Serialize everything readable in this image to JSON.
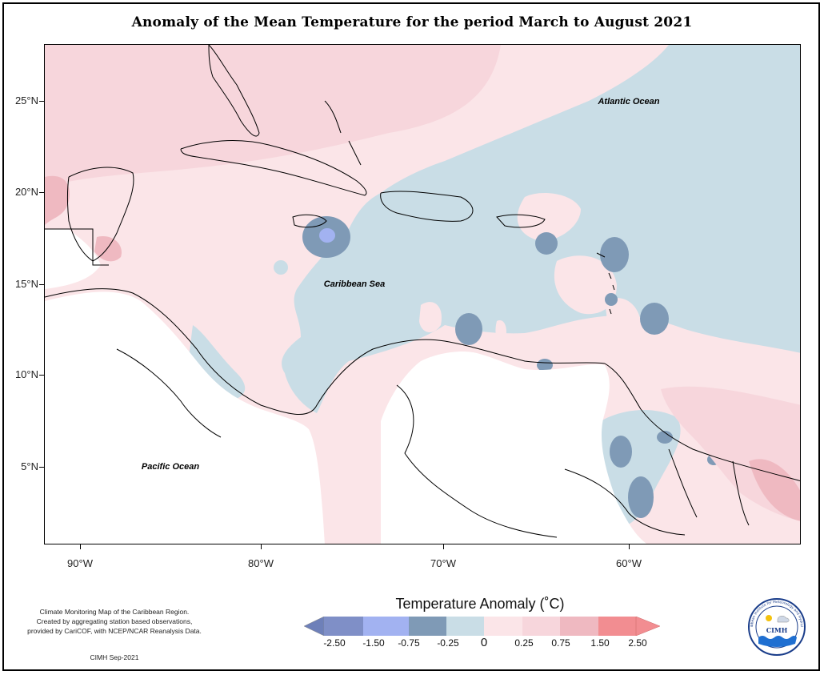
{
  "title": "Anomaly of the Mean Temperature for the period March to August 2021",
  "map": {
    "lon_range": [
      -92,
      -51
    ],
    "lat_range": [
      1,
      28.5
    ],
    "lat_ticks": [
      {
        "value": 25,
        "label": "25°N"
      },
      {
        "value": 20,
        "label": "20°N"
      },
      {
        "value": 15,
        "label": "15°N"
      },
      {
        "value": 10,
        "label": "10°N"
      },
      {
        "value": 5,
        "label": "5°N"
      }
    ],
    "lon_ticks": [
      {
        "value": -90,
        "label": "90°W"
      },
      {
        "value": -80,
        "label": "80°W"
      },
      {
        "value": -70,
        "label": "70°W"
      },
      {
        "value": -60,
        "label": "60°W"
      }
    ],
    "labels": {
      "atlantic": "Atlantic Ocean",
      "caribbean": "Caribbean Sea",
      "pacific": "Pacific Ocean"
    }
  },
  "legend": {
    "title": "Temperature Anomaly (˚C)",
    "bins": [
      {
        "color": "#7f8fc7"
      },
      {
        "color": "#a2b2f1"
      },
      {
        "color": "#7f9ab6"
      },
      {
        "color": "#c9dde6"
      },
      {
        "color": "#fbe5e8"
      },
      {
        "color": "#f7d6dc"
      },
      {
        "color": "#efb9c1"
      },
      {
        "color": "#f28d91"
      }
    ],
    "labels": [
      "-2.50",
      "-1.50",
      "-0.75",
      "-0.25",
      "0",
      "0.25",
      "0.75",
      "1.50",
      "2.50"
    ]
  },
  "colors": {
    "cool_light": "#c9dde6",
    "cool_mid": "#7f9ab6",
    "cool_strong": "#a2b2f1",
    "warm_light": "#fbe5e8",
    "warm_mid": "#f7d6dc",
    "warm_strong": "#efb9c1",
    "warm_max": "#f28d91"
  },
  "credit": {
    "line1": "Climate Monitoring Map of the Caribbean Region.",
    "line2": "Created by aggregating station based observations,",
    "line3": "provided by CariCOF, with NCEP/NCAR Reanalysis Data.",
    "date": "CIMH Sep-2021"
  },
  "logo": {
    "text": "CIMH",
    "ring_text": "Caribbean Institute for Meteorology and Hydrology"
  }
}
